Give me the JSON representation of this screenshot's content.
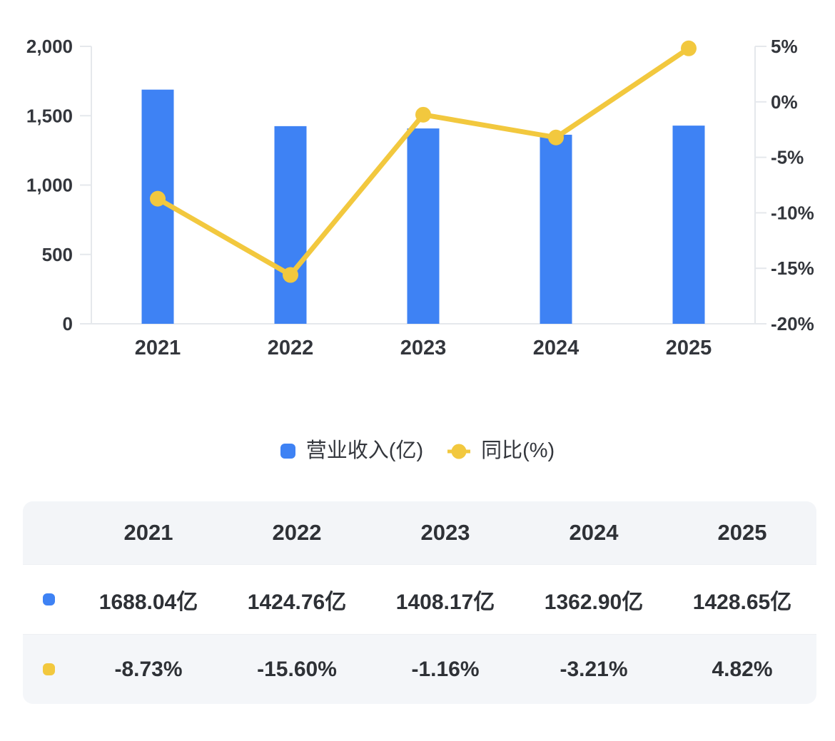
{
  "colors": {
    "bar": "#3E82F4",
    "line": "#F2C83E",
    "axis_line": "#e5e8ec",
    "axis_text": "#33363c"
  },
  "chart_data": {
    "type": "combo_bar_line",
    "categories": [
      "2021",
      "2022",
      "2023",
      "2024",
      "2025"
    ],
    "series": [
      {
        "name": "营业收入(亿)",
        "type": "bar",
        "axis": "left",
        "color": "#3E82F4",
        "values": [
          1688.04,
          1424.76,
          1408.17,
          1362.9,
          1428.65
        ]
      },
      {
        "name": "同比(%)",
        "type": "line",
        "axis": "right",
        "color": "#F2C83E",
        "values": [
          -8.73,
          -15.6,
          -1.16,
          -3.21,
          4.82
        ]
      }
    ],
    "left_axis": {
      "min": 0,
      "max": 2000,
      "tick_values": [
        0,
        500,
        1000,
        1500,
        2000
      ],
      "tick_labels": [
        "0",
        "500",
        "1,000",
        "1,500",
        "2,000"
      ]
    },
    "right_axis": {
      "min": -20,
      "max": 5,
      "tick_values": [
        5,
        0,
        -5,
        -10,
        -15,
        -20
      ],
      "tick_labels": [
        "5%",
        "0%",
        "-5%",
        "-10%",
        "-15%",
        "-20%"
      ]
    },
    "grid": false,
    "legend_position": "bottom"
  },
  "legend": {
    "bar_label": "营业收入(亿)",
    "line_label": "同比(%)"
  },
  "table": {
    "columns": [
      "2021",
      "2022",
      "2023",
      "2024",
      "2025"
    ],
    "rows": [
      {
        "series": "营业收入(亿)",
        "marker_color": "#3E82F4",
        "values": [
          "1688.04亿",
          "1424.76亿",
          "1408.17亿",
          "1362.90亿",
          "1428.65亿"
        ]
      },
      {
        "series": "同比(%)",
        "marker_color": "#F2C83E",
        "values": [
          "-8.73%",
          "-15.60%",
          "-1.16%",
          "-3.21%",
          "4.82%"
        ]
      }
    ]
  }
}
